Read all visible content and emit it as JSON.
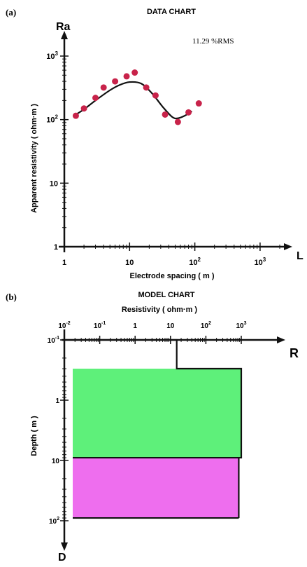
{
  "colors": {
    "axis": "#111111",
    "curve": "#111111",
    "points": "#c8234a",
    "layer_green": "#5ef07a",
    "layer_magenta": "#ee6eee"
  },
  "chart_data": [
    {
      "panel": "(a)",
      "type": "scatter",
      "title": "DATA CHART",
      "annotation": "11.29  %RMS",
      "x_axis_symbol": "L",
      "y_axis_symbol": "Ra",
      "xlabel": "Electrode spacing  ( m )",
      "ylabel": "Apparent resistivity  ( ohm·m )",
      "x_scale": "log",
      "y_scale": "log",
      "xlim": [
        1,
        2000
      ],
      "ylim": [
        1,
        1000
      ],
      "x_ticks": [
        {
          "value": 1,
          "base": "1",
          "exp": ""
        },
        {
          "value": 10,
          "base": "10",
          "exp": ""
        },
        {
          "value": 100,
          "base": "10",
          "exp": "2"
        },
        {
          "value": 1000,
          "base": "10",
          "exp": "3"
        }
      ],
      "y_ticks": [
        {
          "value": 1,
          "base": "1",
          "exp": ""
        },
        {
          "value": 10,
          "base": "10",
          "exp": ""
        },
        {
          "value": 100,
          "base": "10",
          "exp": "2"
        },
        {
          "value": 1000,
          "base": "10",
          "exp": "3"
        }
      ],
      "observed": {
        "x": [
          1.5,
          2.0,
          3.0,
          4.0,
          6.0,
          9.0,
          12.0,
          18.0,
          25.0,
          35.0,
          55.0,
          80.0,
          115.0
        ],
        "y": [
          115,
          150,
          220,
          320,
          400,
          480,
          550,
          320,
          240,
          120,
          92,
          130,
          180
        ]
      },
      "fitted_curve": {
        "x": [
          1.5,
          2,
          3,
          5,
          7,
          10,
          15,
          22,
          32,
          45,
          55,
          70,
          90
        ],
        "y": [
          120,
          145,
          200,
          290,
          350,
          390,
          370,
          260,
          160,
          110,
          105,
          115,
          135
        ]
      }
    },
    {
      "panel": "(b)",
      "type": "line",
      "title": "MODEL CHART",
      "x_axis_symbol": "R",
      "y_axis_symbol": "D",
      "xlabel": "Resistivity  ( ohm·m )",
      "ylabel": "Depth  ( m )",
      "x_scale": "log",
      "y_scale": "log",
      "xlim": [
        0.01,
        1000
      ],
      "ylim": [
        0.1,
        100
      ],
      "x_ticks": [
        {
          "value": 0.01,
          "base": "10",
          "exp": "-2"
        },
        {
          "value": 0.1,
          "base": "10",
          "exp": "-1"
        },
        {
          "value": 1,
          "base": "1",
          "exp": ""
        },
        {
          "value": 10,
          "base": "10",
          "exp": ""
        },
        {
          "value": 100,
          "base": "10",
          "exp": "2"
        },
        {
          "value": 1000,
          "base": "10",
          "exp": "3"
        }
      ],
      "y_ticks": [
        {
          "value": 0.1,
          "base": "10",
          "exp": "-1"
        },
        {
          "value": 1,
          "base": "1",
          "exp": ""
        },
        {
          "value": 10,
          "base": "10",
          "exp": ""
        },
        {
          "value": 100,
          "base": "10",
          "exp": "2"
        }
      ],
      "layers": [
        {
          "resistivity": 15,
          "top": 0.1,
          "bottom": 0.3,
          "fill": "none"
        },
        {
          "resistivity": 1000,
          "top": 0.3,
          "bottom": 9,
          "fill": "green"
        },
        {
          "resistivity": 850,
          "top": 9,
          "bottom": 90,
          "fill": "magenta"
        }
      ]
    }
  ]
}
